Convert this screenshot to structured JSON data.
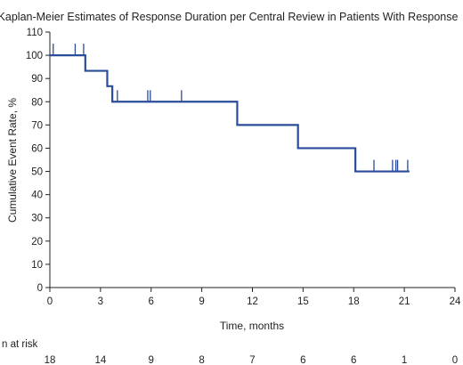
{
  "chart_data": {
    "type": "line",
    "title": "Kaplan-Meier Estimates of Response Duration per Central Review in Patients With Response",
    "xlabel": "Time, months",
    "ylabel": "Cumulative Event Rate, %",
    "xlim": [
      0,
      24
    ],
    "ylim": [
      0,
      110
    ],
    "xticks": [
      0,
      3,
      6,
      9,
      12,
      15,
      18,
      21,
      24
    ],
    "yticks": [
      0,
      10,
      20,
      30,
      40,
      50,
      60,
      70,
      80,
      90,
      100,
      110
    ],
    "grid": false,
    "series": [
      {
        "color": "#2b4c9b",
        "steps": [
          {
            "x": 0,
            "y": 100
          },
          {
            "x": 2.1,
            "y": 93.3
          },
          {
            "x": 3.4,
            "y": 86.7
          },
          {
            "x": 3.7,
            "y": 80
          },
          {
            "x": 11.1,
            "y": 70
          },
          {
            "x": 14.7,
            "y": 60
          },
          {
            "x": 18.1,
            "y": 50
          }
        ],
        "end_x": 21.3,
        "censored": [
          0.2,
          1.5,
          2.0,
          4.0,
          5.8,
          5.95,
          7.8,
          19.2,
          20.3,
          20.5,
          20.6,
          21.2
        ]
      }
    ],
    "at_risk": {
      "label": "n at risk",
      "times": [
        0,
        3,
        6,
        9,
        12,
        15,
        18,
        21,
        24
      ],
      "counts": [
        "18",
        "14",
        "9",
        "8",
        "7",
        "6",
        "6",
        "1",
        "0"
      ]
    }
  }
}
